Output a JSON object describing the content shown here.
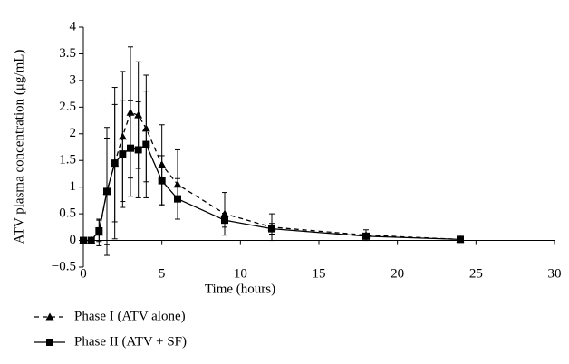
{
  "chart_data": {
    "type": "line",
    "x_label": "Time (hours)",
    "y_label": "ATV plasma concentration (μg/mL)",
    "x": [
      0,
      0.5,
      1,
      1.5,
      2,
      2.5,
      3,
      3.5,
      4,
      5,
      6,
      9,
      12,
      18,
      24
    ],
    "series": [
      {
        "name": "Phase I (ATV alone)",
        "color": "#000000",
        "marker": "triangle",
        "dash": true,
        "values": [
          0,
          0,
          0.15,
          0.92,
          1.45,
          1.95,
          2.4,
          2.35,
          2.1,
          1.42,
          1.05,
          0.5,
          0.25,
          0.1,
          0.02
        ],
        "errors": [
          0,
          0,
          0.25,
          1.2,
          1.42,
          1.22,
          1.23,
          1.0,
          1.0,
          0.75,
          0.65,
          0.4,
          0.25,
          0.1,
          0.03
        ]
      },
      {
        "name": "Phase II (ATV + SF)",
        "color": "#000000",
        "marker": "square",
        "dash": false,
        "values": [
          0,
          0,
          0.18,
          0.92,
          1.45,
          1.62,
          1.73,
          1.7,
          1.8,
          1.12,
          0.78,
          0.38,
          0.22,
          0.08,
          0.02
        ],
        "errors": [
          0,
          0,
          0.2,
          1.0,
          1.1,
          1.0,
          0.9,
          0.9,
          1.0,
          0.47,
          0.38,
          0.13,
          0.1,
          0.05,
          0.01
        ]
      }
    ],
    "xlim": [
      0,
      30
    ],
    "xticks": [
      0,
      5,
      10,
      15,
      20,
      25,
      30
    ],
    "ylim": [
      -0.5,
      4
    ],
    "yticks": [
      {
        "value": -0.5,
        "label": "−0.5"
      },
      0,
      0.5,
      1,
      1.5,
      2,
      2.5,
      3,
      3.5,
      4
    ],
    "legend": "bottom-left"
  }
}
